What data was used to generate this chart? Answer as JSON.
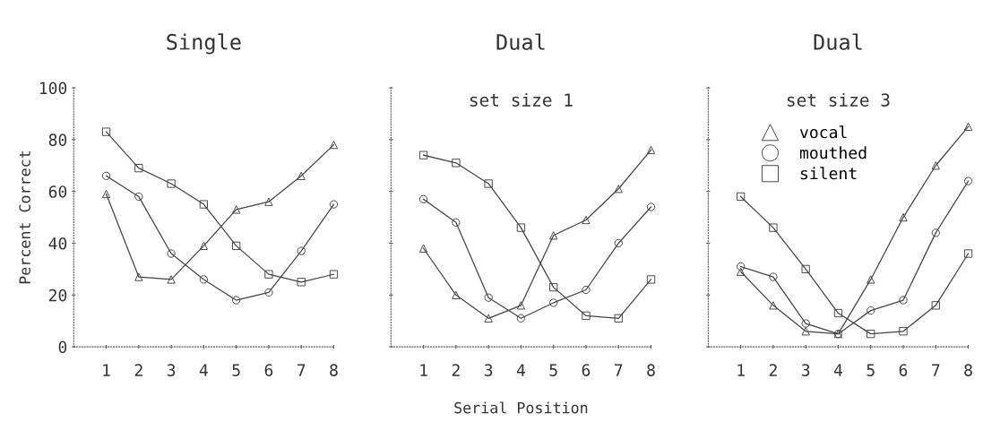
{
  "chart_data": [
    {
      "type": "line",
      "title": "Single",
      "ylabel": "Percent Correct",
      "x": [
        1,
        2,
        3,
        4,
        5,
        6,
        7,
        8
      ],
      "xlim": [
        0,
        8
      ],
      "xticks": [
        1,
        2,
        3,
        4,
        5,
        6,
        7,
        8
      ],
      "ylim": [
        0,
        100
      ],
      "yticks": [
        0,
        20,
        40,
        60,
        80,
        100
      ],
      "grid": false,
      "legend": false,
      "series": [
        {
          "color": "#444444",
          "marker": "triangle",
          "values": [
            59,
            27,
            26,
            39,
            53,
            56,
            66,
            78
          ]
        },
        {
          "color": "#444444",
          "marker": "circle",
          "values": [
            66,
            58,
            36,
            26,
            18,
            21,
            37,
            55
          ]
        },
        {
          "color": "#444444",
          "marker": "square",
          "values": [
            83,
            69,
            63,
            55,
            39,
            28,
            25,
            28
          ]
        }
      ]
    },
    {
      "type": "line",
      "title": "Dual",
      "subtitle": "set size 1",
      "xlabel": "Serial Position",
      "x": [
        1,
        2,
        3,
        4,
        5,
        6,
        7,
        8
      ],
      "xlim": [
        0,
        8
      ],
      "xticks": [
        1,
        2,
        3,
        4,
        5,
        6,
        7,
        8
      ],
      "ylim": [
        0,
        100
      ],
      "yticks": [
        0,
        20,
        40,
        60,
        80,
        100
      ],
      "tick_labels": "x",
      "grid": false,
      "legend": false,
      "series": [
        {
          "color": "#444444",
          "marker": "triangle",
          "values": [
            38,
            20,
            11,
            16,
            43,
            49,
            61,
            76
          ]
        },
        {
          "color": "#444444",
          "marker": "circle",
          "values": [
            57,
            48,
            19,
            11,
            17,
            22,
            40,
            54
          ]
        },
        {
          "color": "#444444",
          "marker": "square",
          "values": [
            74,
            71,
            63,
            46,
            23,
            12,
            11,
            26
          ]
        }
      ]
    },
    {
      "type": "line",
      "title": "Dual",
      "subtitle": "set size 3",
      "x": [
        1,
        2,
        3,
        4,
        5,
        6,
        7,
        8
      ],
      "xlim": [
        0,
        8
      ],
      "xticks": [
        1,
        2,
        3,
        4,
        5,
        6,
        7,
        8
      ],
      "ylim": [
        0,
        100
      ],
      "yticks": [
        0,
        20,
        40,
        60,
        80,
        100
      ],
      "tick_labels": "x",
      "grid": false,
      "legend": "top left",
      "series": [
        {
          "name": "vocal",
          "color": "#444444",
          "marker": "triangle",
          "values": [
            29,
            16,
            6,
            5,
            26,
            50,
            70,
            85
          ]
        },
        {
          "name": "mouthed",
          "color": "#444444",
          "marker": "circle",
          "values": [
            31,
            27,
            9,
            5,
            14,
            18,
            44,
            64
          ]
        },
        {
          "name": "silent",
          "color": "#444444",
          "marker": "square",
          "values": [
            58,
            46,
            30,
            13,
            5,
            6,
            16,
            36
          ]
        }
      ]
    }
  ]
}
